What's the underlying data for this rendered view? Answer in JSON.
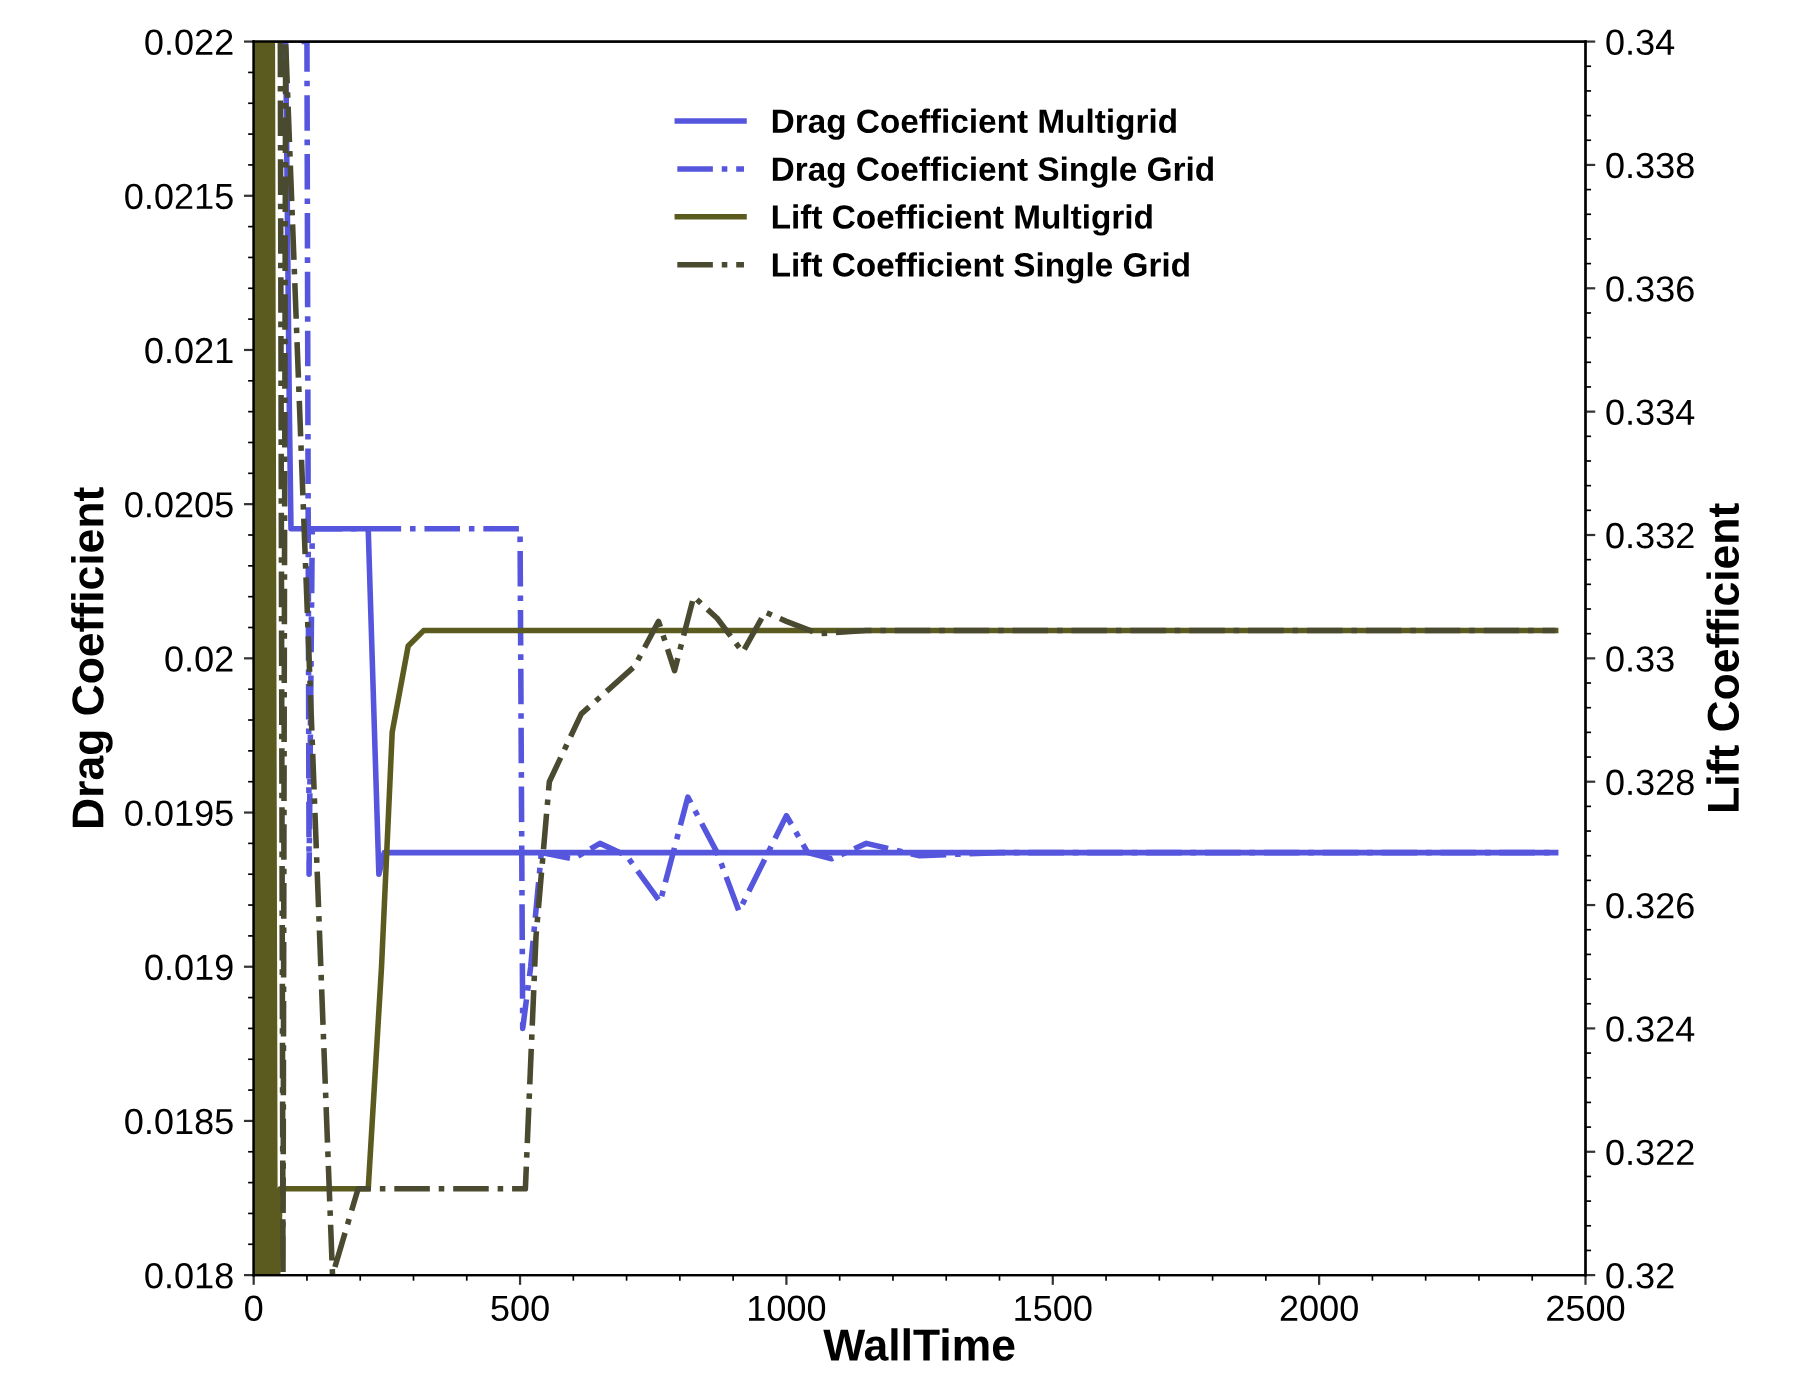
{
  "chart_data": {
    "type": "line",
    "xlabel": "WallTime",
    "ylabel": "Drag Coefficient",
    "y2label": "Lift Coefficient",
    "xlim": [
      0,
      2500
    ],
    "xticks": [
      0,
      500,
      1000,
      1500,
      2000,
      2500
    ],
    "ylim": [
      0.018,
      0.022
    ],
    "yticks": [
      0.018,
      0.0185,
      0.019,
      0.0195,
      0.02,
      0.0205,
      0.021,
      0.0215,
      0.022
    ],
    "y2lim": [
      0.32,
      0.34
    ],
    "y2ticks": [
      0.32,
      0.322,
      0.324,
      0.326,
      0.328,
      0.33,
      0.332,
      0.334,
      0.336,
      0.338,
      0.34
    ],
    "legend": "top",
    "grid": false,
    "marker": "none",
    "series": [
      {
        "name": "Drag Coefficient Multigrid",
        "color": "#5555dd",
        "line_style": "solid",
        "x": [
          60,
          67,
          70,
          215,
          235,
          245,
          255,
          2444
        ],
        "values": [
          0.022,
          0.0208,
          0.02042,
          0.02042,
          0.0193,
          0.01937,
          0.01937,
          0.01937
        ]
      },
      {
        "name": "Drag Coefficient Single Grid",
        "color": "#5555dd",
        "line_style": "dashdot",
        "x": [
          90,
          100,
          104,
          110,
          500,
          505,
          520,
          540,
          600,
          650,
          700,
          763,
          815,
          870,
          911,
          1000,
          1040,
          1085,
          1150,
          1250,
          1400,
          2444
        ],
        "values": [
          0.022,
          0.022,
          0.0193,
          0.02042,
          0.02042,
          0.0188,
          0.019,
          0.01937,
          0.01935,
          0.0194,
          0.01936,
          0.01921,
          0.01955,
          0.01937,
          0.01918,
          0.01949,
          0.01937,
          0.01935,
          0.0194,
          0.01936,
          0.01937,
          0.01937
        ]
      },
      {
        "name": "Lift Coefficient Multigrid",
        "color": "#5b5b20",
        "line_style": "solid",
        "axis": "y2",
        "x": [
          0,
          5,
          10,
          15,
          20,
          25,
          30,
          35,
          40,
          45,
          50,
          215,
          240,
          260,
          290,
          319,
          2444
        ],
        "values": [
          0.32,
          0.34,
          0.32,
          0.34,
          0.32,
          0.34,
          0.32,
          0.34,
          0.32,
          0.32,
          0.3214,
          0.3214,
          0.325,
          0.3288,
          0.3302,
          0.33045,
          0.33045
        ]
      },
      {
        "name": "Lift Coefficient Single Grid",
        "color": "#4a4a30",
        "line_style": "dashdot",
        "axis": "y2",
        "x": [
          50,
          55,
          60,
          148,
          196,
          500,
          510,
          530,
          555,
          615,
          715,
          760,
          790,
          826,
          870,
          918,
          960,
          1000,
          1060,
          1150,
          1300,
          2444
        ],
        "values": [
          0.34,
          0.32,
          0.34,
          0.32,
          0.3214,
          0.3214,
          0.3214,
          0.3255,
          0.328,
          0.3291,
          0.32987,
          0.3306,
          0.3298,
          0.331,
          0.33065,
          0.3301,
          0.33075,
          0.3306,
          0.3304,
          0.33045,
          0.33045,
          0.33045
        ]
      }
    ]
  }
}
